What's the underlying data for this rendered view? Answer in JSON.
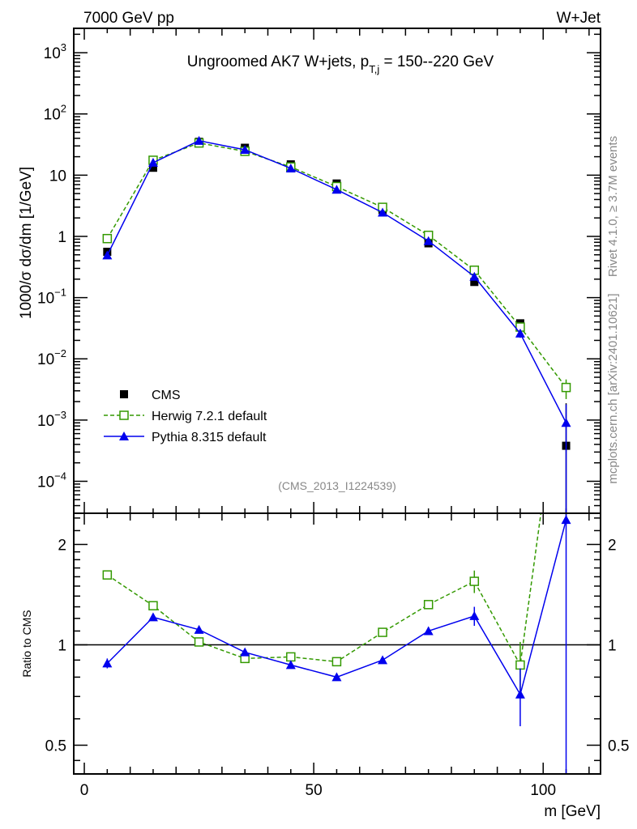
{
  "header": {
    "left": "7000 GeV pp",
    "right": "W+Jet"
  },
  "side_text": {
    "rivet": "Rivet 4.1.0, ≥ 3.7M events",
    "mcplots": "mcplots.cern.ch [arXiv:2401.10621]"
  },
  "analysis_id": "(CMS_2013_I1224539)",
  "chart_data": [
    {
      "type": "line",
      "title": "Ungroomed AK7 W+jets, p",
      "title_sub": "T,j",
      "title_rest": " = 150--220 GeV",
      "ylabel": "1000/σ  dσ/dm [1/GeV]",
      "yscale": "log",
      "ylim": [
        3e-05,
        2500
      ],
      "xlim": [
        -2.3,
        112.5
      ],
      "yticks": [
        {
          "value": 1000,
          "label": "10",
          "exp": "3"
        },
        {
          "value": 100,
          "label": "10",
          "exp": "2"
        },
        {
          "value": 10,
          "label": "10",
          "exp": ""
        },
        {
          "value": 1,
          "label": "1",
          "exp": ""
        },
        {
          "value": 0.1,
          "label": "10",
          "exp": "−1"
        },
        {
          "value": 0.01,
          "label": "10",
          "exp": "−2"
        },
        {
          "value": 0.001,
          "label": "10",
          "exp": "−3"
        },
        {
          "value": 0.0001,
          "label": "10",
          "exp": "−4"
        }
      ],
      "legend_position": "lower-left",
      "x": [
        5,
        15,
        25,
        35,
        45,
        55,
        65,
        75,
        85,
        95,
        105
      ],
      "series": [
        {
          "name": "CMS",
          "color": "#000000",
          "marker": "filled-square",
          "line": "none",
          "values": [
            0.56,
            13.2,
            35,
            28,
            15,
            7.3,
            2.7,
            0.77,
            0.18,
            0.038,
            0.00038
          ],
          "err": [
            0.05,
            0.5,
            1,
            1,
            0.5,
            0.3,
            0.15,
            0.05,
            0.015,
            0.004,
            0.0015
          ]
        },
        {
          "name": "Herwig 7.2.1 default",
          "color": "#339900",
          "marker": "open-square",
          "line": "dashed",
          "values": [
            0.92,
            17.5,
            33.5,
            24.5,
            13.6,
            6.5,
            2.98,
            1.04,
            0.28,
            0.033,
            0.0034
          ],
          "err": [
            0.02,
            0.2,
            0.3,
            0.3,
            0.2,
            0.1,
            0.05,
            0.03,
            0.02,
            0.004,
            0.0012
          ]
        },
        {
          "name": "Pythia 8.315 default",
          "color": "#0000ee",
          "marker": "filled-triangle",
          "line": "solid",
          "values": [
            0.49,
            16,
            36.5,
            26,
            12.9,
            5.8,
            2.45,
            0.84,
            0.22,
            0.026,
            0.0009
          ],
          "err": [
            0.02,
            0.2,
            0.3,
            0.3,
            0.2,
            0.1,
            0.05,
            0.03,
            0.02,
            0.004,
            0.0009
          ]
        }
      ]
    },
    {
      "type": "line",
      "ylabel": "Ratio to CMS",
      "yscale": "log",
      "ylim": [
        0.41,
        2.48
      ],
      "yticks": [
        {
          "value": 2,
          "label": "2"
        },
        {
          "value": 1,
          "label": "1"
        },
        {
          "value": 0.5,
          "label": "0.5"
        }
      ],
      "xlabel": "m [GeV]",
      "xticks": [
        {
          "value": 0,
          "label": "0"
        },
        {
          "value": 50,
          "label": "50"
        },
        {
          "value": 100,
          "label": "100"
        }
      ],
      "reference": 1,
      "x": [
        5,
        15,
        25,
        35,
        45,
        55,
        65,
        75,
        85,
        95,
        105
      ],
      "series": [
        {
          "name": "Herwig 7.2.1 default",
          "color": "#339900",
          "values": [
            1.62,
            1.31,
            1.02,
            0.91,
            0.92,
            0.89,
            1.09,
            1.32,
            1.55,
            0.87,
            8.9
          ],
          "err": [
            0.04,
            0.02,
            0.02,
            0.02,
            0.02,
            0.02,
            0.03,
            0.04,
            0.12,
            0.15,
            3
          ]
        },
        {
          "name": "Pythia 8.315 default",
          "color": "#0000ee",
          "values": [
            0.88,
            1.21,
            1.11,
            0.95,
            0.87,
            0.8,
            0.9,
            1.1,
            1.22,
            0.71,
            2.37
          ],
          "err": [
            0.03,
            0.01,
            0.01,
            0.01,
            0.01,
            0.01,
            0.01,
            0.03,
            0.08,
            0.14,
            2.5
          ]
        }
      ]
    }
  ]
}
